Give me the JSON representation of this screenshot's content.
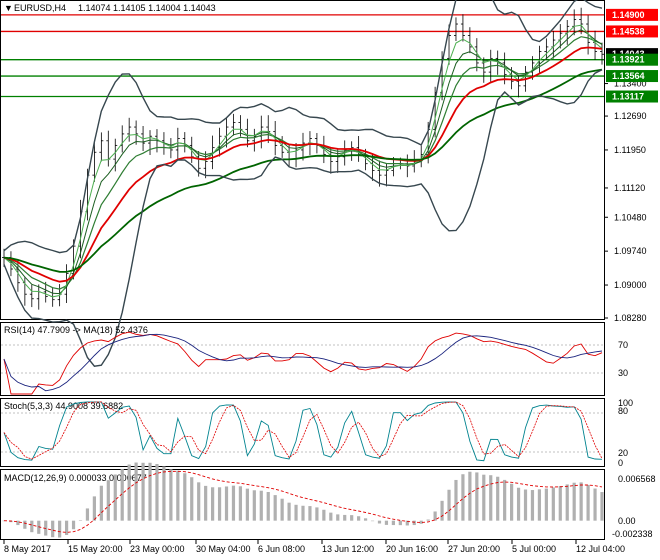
{
  "header": {
    "symbol": "EURUSD,H4",
    "ohlc": "1.14074 1.14105 1.14004 1.14043",
    "arrow": "▼"
  },
  "price_axis": {
    "ticks": [
      "1.13400",
      "1.12690",
      "1.11950",
      "1.11120",
      "1.10480",
      "1.09740",
      "1.09000",
      "1.08280"
    ],
    "tags": [
      {
        "label": "1.14900",
        "color": "#ff0000"
      },
      {
        "label": "1.14538",
        "color": "#ff0000"
      },
      {
        "label": "1.14043",
        "color": "#000000"
      },
      {
        "label": "1.13921",
        "color": "#008000"
      },
      {
        "label": "1.13564",
        "color": "#008000"
      },
      {
        "label": "1.13117",
        "color": "#008000"
      }
    ]
  },
  "levels": [
    {
      "price": 1.149,
      "color": "#e00000"
    },
    {
      "price": 1.14538,
      "color": "#e00000"
    },
    {
      "price": 1.13921,
      "color": "#008000"
    },
    {
      "price": 1.13564,
      "color": "#008000"
    },
    {
      "price": 1.13117,
      "color": "#008000"
    }
  ],
  "rsi": {
    "label": "RSI(14) 47.7909 -> MA(18) 52.4376",
    "ticks": [
      "70",
      "30"
    ],
    "ylim": [
      0,
      100
    ]
  },
  "stoch": {
    "label": "Stoch(5,3,3) 44.9008 39.6882",
    "ticks": [
      "100",
      "80",
      "20",
      "0"
    ],
    "ylim": [
      0,
      100
    ]
  },
  "macd": {
    "label": "MACD(12,26,9) 0.000033 0.000677",
    "ticks": [
      "0.006568",
      "0.00",
      "-0.002338"
    ]
  },
  "time_axis": {
    "labels": [
      "8 May 2017",
      "15 May 20:00",
      "23 May 00:00",
      "30 May 04:00",
      "6 Jun 08:00",
      "13 Jun 12:00",
      "20 Jun 16:00",
      "27 Jun 20:00",
      "5 Jul 00:00",
      "12 Jul 04:00"
    ]
  },
  "chart_data": {
    "type": "line",
    "title": "",
    "ylim": [
      1.0828,
      1.1505
    ],
    "close_series": [
      1.096,
      1.0935,
      1.0905,
      1.088,
      1.087,
      1.0885,
      1.0875,
      1.0868,
      1.088,
      1.0925,
      1.0985,
      1.106,
      1.114,
      1.119,
      1.1215,
      1.1175,
      1.1205,
      1.123,
      1.1245,
      1.123,
      1.121,
      1.1225,
      1.1215,
      1.12,
      1.1195,
      1.122,
      1.1205,
      1.118,
      1.1155,
      1.117,
      1.12,
      1.1225,
      1.1245,
      1.1255,
      1.124,
      1.1215,
      1.1225,
      1.1245,
      1.1235,
      1.1205,
      1.119,
      1.1175,
      1.1195,
      1.121,
      1.122,
      1.1205,
      1.1185,
      1.117,
      1.118,
      1.1195,
      1.12,
      1.1185,
      1.1165,
      1.115,
      1.114,
      1.115,
      1.1165,
      1.1165,
      1.116,
      1.117,
      1.1185,
      1.124,
      1.132,
      1.1395,
      1.1445,
      1.147,
      1.1445,
      1.142,
      1.1385,
      1.1365,
      1.1395,
      1.1385,
      1.136,
      1.1345,
      1.1335,
      1.1365,
      1.1385,
      1.141,
      1.142,
      1.1435,
      1.145,
      1.1465,
      1.148,
      1.147,
      1.143,
      1.141,
      1.1404
    ]
  }
}
